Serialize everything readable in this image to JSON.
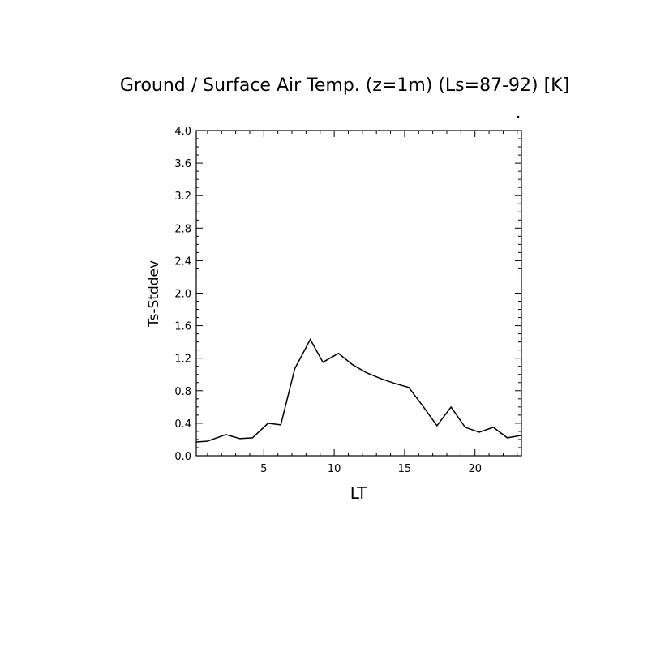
{
  "chart_data": {
    "type": "line",
    "title": "Ground / Surface Air Temp. (z=1m) (Ls=87-92) [K]",
    "xlabel": "LT",
    "ylabel": "Ts-Stddev",
    "xlim": [
      0.2,
      23.3
    ],
    "ylim": [
      0.0,
      4.0
    ],
    "x_ticks": [
      "5",
      "10",
      "15",
      "20"
    ],
    "y_ticks": [
      "0.0",
      "0.4",
      "0.8",
      "1.2",
      "1.6",
      "2.0",
      "2.4",
      "2.8",
      "3.2",
      "3.6",
      "4.0"
    ],
    "grid": false,
    "line_color": "#000000",
    "series": [
      {
        "x": [
          0.2,
          1.0,
          2.3,
          3.3,
          4.2,
          5.3,
          6.2,
          7.2,
          8.3,
          9.2,
          10.3,
          11.3,
          12.3,
          13.3,
          14.3,
          15.3,
          16.3,
          17.3,
          18.3,
          19.3,
          20.3,
          21.3,
          22.3,
          23.3
        ],
        "values": [
          0.17,
          0.18,
          0.26,
          0.21,
          0.22,
          0.4,
          0.38,
          1.07,
          1.43,
          1.15,
          1.26,
          1.12,
          1.02,
          0.95,
          0.89,
          0.84,
          0.61,
          0.37,
          0.6,
          0.35,
          0.29,
          0.35,
          0.22,
          0.25
        ]
      }
    ]
  }
}
